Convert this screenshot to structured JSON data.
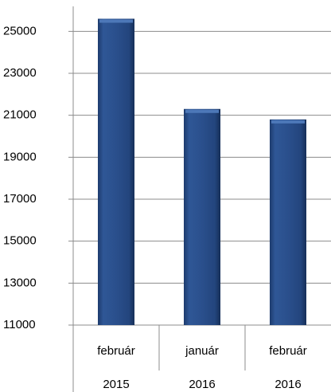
{
  "chart_data": {
    "type": "bar",
    "categories": [
      "február",
      "január",
      "február"
    ],
    "category_groups": [
      "2015",
      "2016",
      "2016"
    ],
    "values": [
      25600,
      21300,
      20800
    ],
    "color": "#2a4f8c",
    "ylim": [
      11000,
      26000
    ],
    "yticks": [
      11000,
      13000,
      15000,
      17000,
      19000,
      21000,
      23000,
      25000
    ],
    "grid": true
  }
}
